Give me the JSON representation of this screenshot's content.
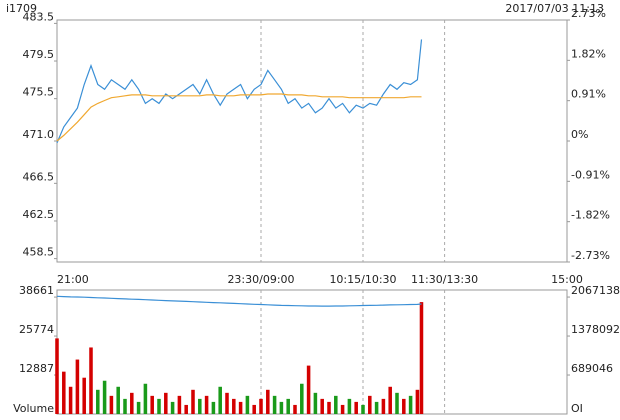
{
  "header": {
    "symbol": "i1709",
    "datetime": "2017/07/03 11:13"
  },
  "chart_data": [
    {
      "type": "line",
      "xticks": [
        {
          "value": 0,
          "label": "21:00"
        },
        {
          "value": 150,
          "label": "23:30/09:00"
        },
        {
          "value": 225,
          "label": "10:15/10:30"
        },
        {
          "value": 285,
          "label": "11:30/13:30"
        },
        {
          "value": 375,
          "label": "15:00"
        }
      ],
      "xlim": [
        0,
        375
      ],
      "ylim": [
        458.14,
        483.86
      ],
      "yticks": [
        483.5,
        479.5,
        475.5,
        {
          "value": 471,
          "label": "471.0"
        },
        466.5,
        462.5,
        458.5
      ],
      "y2lim": [
        -2.73,
        2.73
      ],
      "y2ticks": [
        {
          "value": 2.73,
          "label": "2.73%"
        },
        {
          "value": 1.82,
          "label": "1.82%"
        },
        {
          "value": 0.91,
          "label": "0.91%"
        },
        {
          "value": 0,
          "label": "0%"
        },
        {
          "value": -0.91,
          "label": "-0.91%"
        },
        {
          "value": -1.82,
          "label": "-1.82%"
        },
        {
          "value": -2.73,
          "label": "-2.73%"
        }
      ],
      "grid": true,
      "x": [
        0,
        5,
        10,
        15,
        20,
        25,
        30,
        35,
        40,
        45,
        50,
        55,
        60,
        65,
        70,
        75,
        80,
        85,
        90,
        95,
        100,
        105,
        110,
        115,
        120,
        125,
        130,
        135,
        140,
        145,
        150,
        155,
        160,
        165,
        170,
        175,
        180,
        185,
        190,
        195,
        200,
        205,
        210,
        215,
        220,
        225,
        230,
        235,
        240,
        245,
        250,
        255,
        260,
        265,
        268
      ],
      "series": [
        {
          "color": "#3a8fd6",
          "values": [
            470.8,
            472.5,
            473.5,
            474.5,
            477,
            479,
            477,
            476.5,
            477.5,
            477,
            476.5,
            477.5,
            476.5,
            475,
            475.5,
            475,
            476,
            475.5,
            476,
            476.5,
            477,
            476,
            477.5,
            476,
            474.8,
            476,
            476.5,
            477,
            475.5,
            476.5,
            477,
            478.5,
            477.5,
            476.5,
            475,
            475.5,
            474.5,
            475,
            474,
            474.5,
            475.5,
            474.5,
            475,
            474,
            474.8,
            474.5,
            475,
            474.8,
            476,
            477,
            476.5,
            477.2,
            477,
            477.5,
            481.8
          ]
        },
        {
          "color": "#f0a830",
          "values": [
            471,
            471.6,
            472.3,
            473,
            473.8,
            474.6,
            475,
            475.3,
            475.6,
            475.7,
            475.8,
            475.9,
            475.9,
            475.9,
            475.8,
            475.8,
            475.8,
            475.8,
            475.8,
            475.8,
            475.8,
            475.8,
            475.9,
            475.9,
            475.8,
            475.8,
            475.8,
            475.9,
            475.9,
            475.9,
            475.9,
            476,
            476,
            476,
            475.9,
            475.9,
            475.9,
            475.8,
            475.8,
            475.7,
            475.7,
            475.7,
            475.7,
            475.6,
            475.6,
            475.6,
            475.6,
            475.6,
            475.6,
            475.6,
            475.6,
            475.6,
            475.7,
            475.7,
            475.7
          ]
        }
      ]
    },
    {
      "type": "bar",
      "xlim": [
        0,
        375
      ],
      "ylim": [
        0,
        41000
      ],
      "yticks": [
        38661,
        25774,
        12887
      ],
      "ylabel": "Volume",
      "y2lim": [
        0,
        2192000
      ],
      "y2ticks": [
        2067138,
        1378092,
        689046
      ],
      "y2label": "OI",
      "up_color": "#d40000",
      "down_color": "#1a9a1a",
      "x": [
        0,
        5,
        10,
        15,
        20,
        25,
        30,
        35,
        40,
        45,
        50,
        55,
        60,
        65,
        70,
        75,
        80,
        85,
        90,
        95,
        100,
        105,
        110,
        115,
        120,
        125,
        130,
        135,
        140,
        145,
        150,
        155,
        160,
        165,
        170,
        175,
        180,
        185,
        190,
        195,
        200,
        205,
        210,
        215,
        220,
        225,
        230,
        235,
        240,
        245,
        250,
        255,
        260,
        265,
        268
      ],
      "values": [
        25000,
        14000,
        9000,
        18000,
        12000,
        22000,
        8000,
        11000,
        6000,
        9000,
        5000,
        7000,
        4000,
        10000,
        6000,
        5000,
        7000,
        4000,
        6000,
        3000,
        8000,
        5000,
        6000,
        4000,
        9000,
        7000,
        5000,
        4000,
        6000,
        3000,
        5000,
        8000,
        6000,
        4000,
        5000,
        3000,
        10000,
        16000,
        7000,
        5000,
        4000,
        6000,
        3000,
        5000,
        4000,
        3000,
        6000,
        4000,
        5000,
        9000,
        7000,
        5000,
        6000,
        8000,
        37000
      ],
      "series": [
        {
          "axis": "y2",
          "color": "#3a8fd6",
          "values": [
            2080000,
            2075000,
            2070000,
            2068000,
            2065000,
            2060000,
            2055000,
            2050000,
            2045000,
            2040000,
            2035000,
            2030000,
            2025000,
            2020000,
            2015000,
            2010000,
            2005000,
            2000000,
            1995000,
            1990000,
            1985000,
            1980000,
            1975000,
            1970000,
            1965000,
            1960000,
            1955000,
            1950000,
            1945000,
            1940000,
            1935000,
            1930000,
            1925000,
            1920000,
            1918000,
            1915000,
            1912000,
            1910000,
            1910000,
            1908000,
            1908000,
            1910000,
            1910000,
            1912000,
            1915000,
            1918000,
            1920000,
            1922000,
            1925000,
            1928000,
            1930000,
            1932000,
            1935000,
            1938000,
            1945000
          ]
        }
      ]
    }
  ]
}
